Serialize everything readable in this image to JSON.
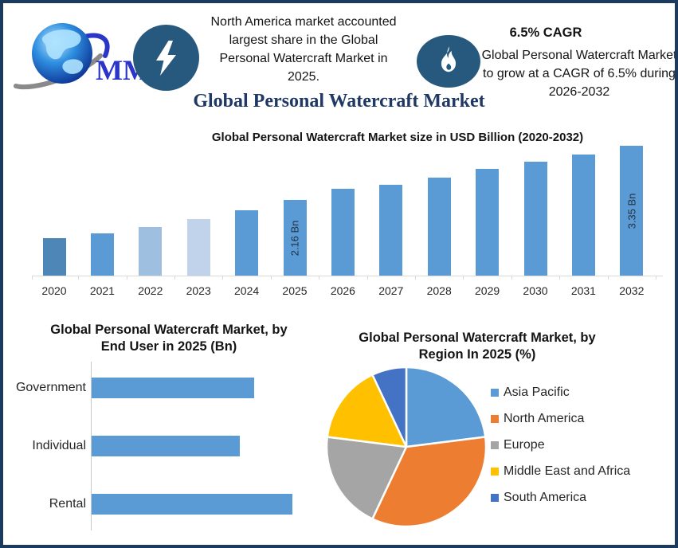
{
  "header": {
    "logo": {
      "text": "MMR",
      "text_color": "#2b35c8",
      "globe_outer": "#0a2d8f",
      "globe_inner": "#8fd4f8",
      "swoosh_gray": "#8a8a8a",
      "swoosh_blue": "#2b35c8"
    },
    "badge1": {
      "icon": "lightning-bolt",
      "bg": "#27597f"
    },
    "headline": "North America market accounted largest share in the Global Personal Watercraft Market in 2025.",
    "badge2": {
      "icon": "flame",
      "bg": "#27597f"
    },
    "cagr_title": "6.5% CAGR",
    "cagr_text": "Global Personal Watercraft Market to grow at a CAGR of 6.5% during 2026-2032",
    "main_title": {
      "text": "Global Personal Watercraft Market",
      "color": "#1f3864"
    }
  },
  "chart_data": [
    {
      "id": "market_size",
      "type": "bar",
      "title": "Global Personal Watercraft Market size in USD Billion (2020-2032)",
      "categories": [
        "2020",
        "2021",
        "2022",
        "2023",
        "2024",
        "2025",
        "2026",
        "2027",
        "2028",
        "2029",
        "2030",
        "2031",
        "2032"
      ],
      "values": [
        1.32,
        1.43,
        1.57,
        1.74,
        1.94,
        2.16,
        2.41,
        2.5,
        2.66,
        2.84,
        3.01,
        3.17,
        3.35
      ],
      "unit": "USD Billion",
      "data_labels": [
        {
          "category": "2025",
          "label": "2.16 Bn"
        },
        {
          "category": "2032",
          "label": "3.35 Bn"
        }
      ],
      "bar_colors": [
        "#4e86b8",
        "#5b9bd5",
        "#9ebfe0",
        "#c1d3ea",
        "#5b9bd5",
        "#5b9bd5",
        "#5b9bd5",
        "#5b9bd5",
        "#5b9bd5",
        "#5b9bd5",
        "#5b9bd5",
        "#5b9bd5",
        "#5b9bd5"
      ],
      "ylim": [
        0.5,
        3.6
      ],
      "gridlines": false,
      "axis_color": "#d9d9d9",
      "label_color": "#203040"
    },
    {
      "id": "end_user",
      "type": "bar",
      "orientation": "horizontal",
      "title": "Global Personal Watercraft Market, by End User in 2025 (Bn)",
      "title_lines": [
        "Global Personal Watercraft Market, by",
        "End User in 2025 (Bn)"
      ],
      "categories": [
        "Government",
        "Individual",
        "Rental"
      ],
      "values": [
        0.69,
        0.63,
        0.85
      ],
      "unit": "Bn (estimated from bar lengths)",
      "bar_color": "#5b9bd5",
      "xlim": [
        0,
        1.0
      ],
      "gridlines": false,
      "axis_color": "#c9c9c9"
    },
    {
      "id": "by_region",
      "type": "pie",
      "title": "Global Personal Watercraft Market, by Region In 2025 (%)",
      "title_lines": [
        "Global Personal Watercraft Market, by",
        "Region In 2025 (%)"
      ],
      "labels": [
        "Asia Pacific",
        "North America",
        "Europe",
        "Middle East and Africa",
        "South America"
      ],
      "values": [
        23,
        34,
        20,
        16,
        7
      ],
      "colors": [
        "#5b9bd5",
        "#ed7d31",
        "#a5a5a5",
        "#ffc000",
        "#4472c4"
      ],
      "legend_position": "right",
      "start_angle_deg": 0,
      "clockwise": true,
      "slice_gap_color": "#ffffff"
    }
  ]
}
